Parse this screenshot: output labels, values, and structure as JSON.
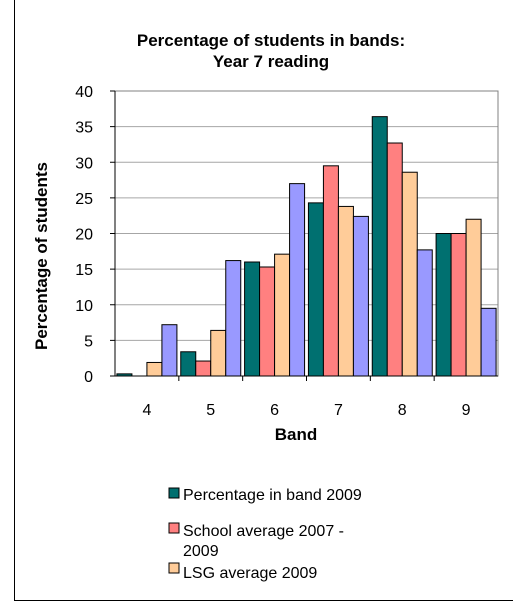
{
  "chart_data": {
    "type": "bar",
    "title": "Percentage of students in bands:",
    "subtitle": "Year 7 reading",
    "xlabel": "Band",
    "ylabel": "Percentage of students",
    "categories": [
      "4",
      "5",
      "6",
      "7",
      "8",
      "9"
    ],
    "ylim": [
      0,
      40
    ],
    "yticks": [
      0,
      5,
      10,
      15,
      20,
      25,
      30,
      35,
      40
    ],
    "grid": true,
    "legend_position": "bottom",
    "series": [
      {
        "name": "Percentage in band 2009",
        "color": "#007070",
        "values": [
          0.3,
          3.4,
          16.0,
          24.3,
          36.4,
          20.0
        ]
      },
      {
        "name": "School average 2007 - 2009",
        "color": "#ff8080",
        "values": [
          0.0,
          2.1,
          15.3,
          29.5,
          32.7,
          20.0
        ]
      },
      {
        "name": "LSG average 2009",
        "color": "#ffcc99",
        "values": [
          1.9,
          6.4,
          17.1,
          23.8,
          28.6,
          22.0
        ]
      },
      {
        "name": "",
        "color": "#9999ff",
        "values": [
          7.2,
          16.2,
          27.0,
          22.4,
          17.7,
          9.5
        ]
      }
    ]
  }
}
